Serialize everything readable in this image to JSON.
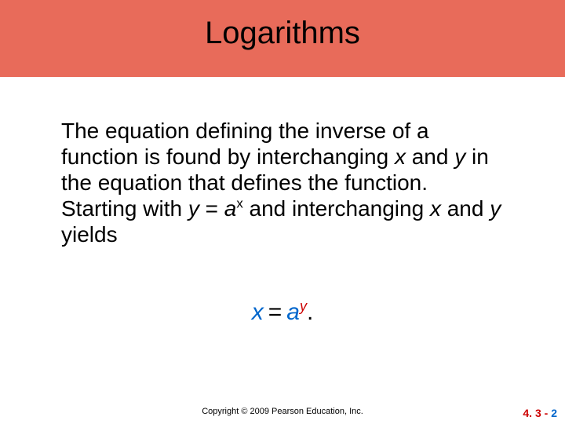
{
  "header": {
    "title": "Logarithms",
    "band_color": "#e86b5a",
    "title_color": "#000000",
    "title_fontsize": 40
  },
  "body": {
    "t1": "The equation defining the inverse of a function is found by interchanging ",
    "x1": "x",
    "t2": " and ",
    "y1": "y",
    "t3": " in the equation that defines the function. Starting with ",
    "y2": "y",
    "t4": " = ",
    "a1": "a",
    "sx": "x",
    "t5": " and interchanging ",
    "x2": "x",
    "t6": " and ",
    "y3": "y",
    "t7": " yields",
    "fontsize": 28,
    "color": "#000000"
  },
  "equation": {
    "x": "x",
    "eq": "=",
    "a": "a",
    "y": "y",
    "dot": ".",
    "x_color": "#0066cc",
    "a_color": "#0066cc",
    "y_color": "#cc0000",
    "fontsize": 30
  },
  "footer": {
    "copyright": "Copyright © 2009 Pearson Education, Inc.",
    "section": "4. 3",
    "dash": " - ",
    "page": "2",
    "section_color": "#cc0000",
    "page_color": "#0066cc"
  }
}
